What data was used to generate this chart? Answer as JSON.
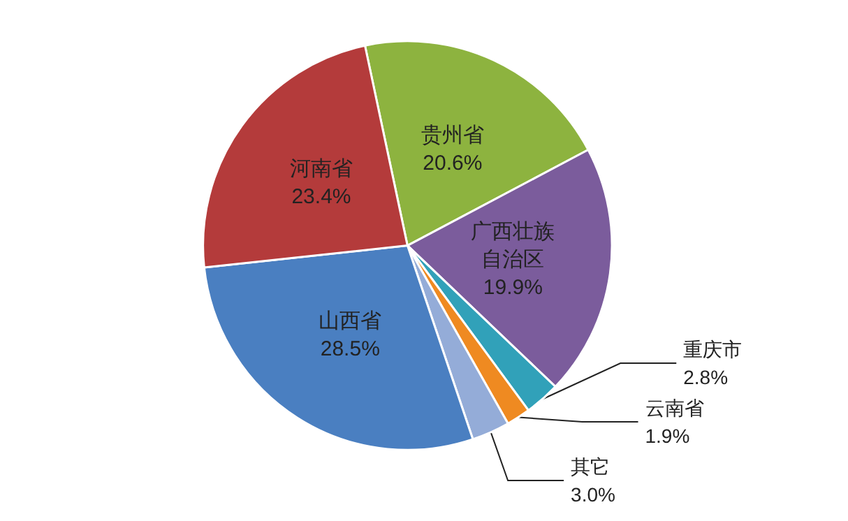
{
  "chart_data": {
    "type": "pie",
    "categories": [
      "贵州省",
      "广西壮族自治区",
      "重庆市",
      "云南省",
      "其它",
      "山西省",
      "河南省"
    ],
    "values": [
      20.6,
      19.9,
      2.8,
      1.9,
      3.0,
      28.5,
      23.4
    ],
    "value_labels": [
      "20.6%",
      "19.9%",
      "2.8%",
      "1.9%",
      "3.0%",
      "28.5%",
      "23.4%"
    ],
    "colors": [
      "#8db33f",
      "#7b5c9c",
      "#31a1b9",
      "#ef8a21",
      "#94acd8",
      "#4a7fc1",
      "#b43b3b"
    ],
    "legend": false
  }
}
